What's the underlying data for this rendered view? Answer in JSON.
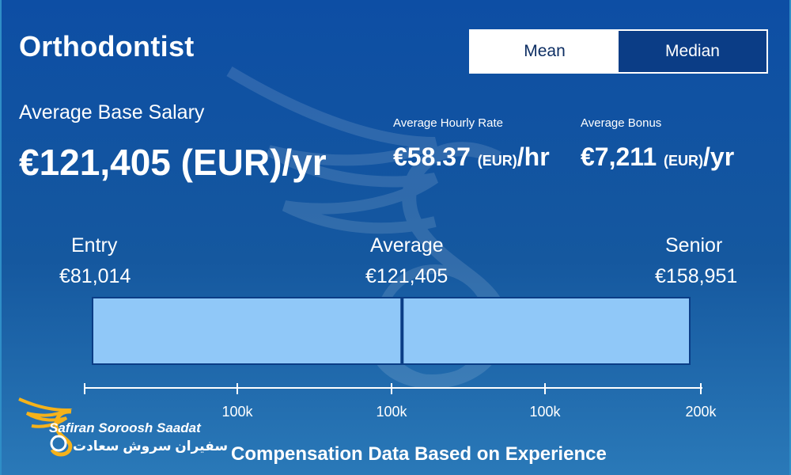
{
  "title": "Orthodontist",
  "toggle": {
    "mean_label": "Mean",
    "median_label": "Median",
    "selected": "Mean"
  },
  "base_salary": {
    "label": "Average Base Salary",
    "value": "€121,405 (EUR)/yr"
  },
  "hourly": {
    "label": "Average Hourly Rate",
    "amount": "€58.37",
    "currency": "(EUR)",
    "unit": "/hr"
  },
  "bonus": {
    "label": "Average Bonus",
    "amount": "€7,211",
    "currency": "(EUR)",
    "unit": "/yr"
  },
  "chart_data": {
    "type": "range",
    "levels": [
      {
        "name": "Entry",
        "value_label": "€81,014",
        "value": 81014
      },
      {
        "name": "Average",
        "value_label": "€121,405",
        "value": 121405
      },
      {
        "name": "Senior",
        "value_label": "€158,951",
        "value": 158951
      }
    ],
    "ticks": [
      "100k",
      "100k",
      "100k",
      "200k"
    ],
    "colors": {
      "bar": "#90c8f8",
      "marker": "#0b3d86",
      "axis": "#ffffff"
    }
  },
  "footer": "Compensation Data Based on Experience",
  "logo": {
    "en": "Safiran Soroosh Saadat",
    "fa": "سفیران سروش سعادت"
  }
}
